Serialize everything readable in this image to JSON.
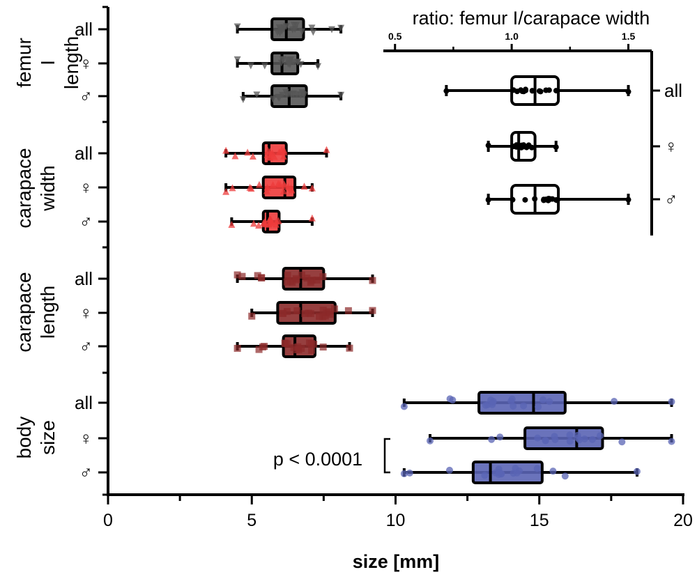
{
  "chart_data": [
    {
      "type": "box",
      "xlabel": "size [mm]",
      "xlim": [
        0,
        20
      ],
      "x_ticks": [
        0,
        5,
        10,
        15,
        20
      ],
      "groups": [
        {
          "label": "femur I length",
          "color": "#555555",
          "marker": "triangle-down",
          "rows": [
            {
              "label": "all",
              "min": 4.5,
              "q1": 5.7,
              "median": 6.2,
              "q3": 6.8,
              "max": 8.1
            },
            {
              "label": "♀",
              "min": 4.5,
              "q1": 5.7,
              "median": 6.05,
              "q3": 6.6,
              "max": 7.3
            },
            {
              "label": "♂",
              "min": 4.7,
              "q1": 5.7,
              "median": 6.3,
              "q3": 6.9,
              "max": 8.1
            }
          ]
        },
        {
          "label": "carapace width",
          "color": "#ee3b3b",
          "marker": "triangle-up",
          "rows": [
            {
              "label": "all",
              "min": 4.1,
              "q1": 5.4,
              "median": 5.6,
              "q3": 6.2,
              "max": 7.6
            },
            {
              "label": "♀",
              "min": 4.1,
              "q1": 5.4,
              "median": 6.15,
              "q3": 6.5,
              "max": 7.1
            },
            {
              "label": "♂",
              "min": 4.3,
              "q1": 5.4,
              "median": 5.55,
              "q3": 5.95,
              "max": 7.1
            }
          ]
        },
        {
          "label": "carapace length",
          "color": "#8b2a2a",
          "marker": "square",
          "rows": [
            {
              "label": "all",
              "min": 4.5,
              "q1": 6.1,
              "median": 6.7,
              "q3": 7.5,
              "max": 9.2
            },
            {
              "label": "♀",
              "min": 5.0,
              "q1": 5.9,
              "median": 6.7,
              "q3": 7.9,
              "max": 9.2
            },
            {
              "label": "♂",
              "min": 4.5,
              "q1": 6.1,
              "median": 6.5,
              "q3": 7.2,
              "max": 8.4
            }
          ]
        },
        {
          "label": "body size",
          "color": "#5a64b4",
          "marker": "circle",
          "rows": [
            {
              "label": "all",
              "min": 10.3,
              "q1": 12.9,
              "median": 14.8,
              "q3": 15.9,
              "max": 19.6
            },
            {
              "label": "♀",
              "min": 11.2,
              "q1": 14.5,
              "median": 16.3,
              "q3": 17.2,
              "max": 19.6
            },
            {
              "label": "♂",
              "min": 10.3,
              "q1": 12.7,
              "median": 13.3,
              "q3": 15.1,
              "max": 18.4
            }
          ]
        }
      ],
      "annotation": "p < 0.0001"
    },
    {
      "type": "box",
      "title": "ratio: femur I/carapace width",
      "xlim": [
        0.45,
        1.6
      ],
      "x_ticks": [
        0.5,
        1.0,
        1.5
      ],
      "x_tick_labels": [
        "0.5",
        "1.0",
        "1.5"
      ],
      "rows": [
        {
          "label": "all",
          "min": 0.72,
          "q1": 1.0,
          "median": 1.1,
          "q3": 1.2,
          "max": 1.5
        },
        {
          "label": "♀",
          "min": 0.9,
          "q1": 1.0,
          "median": 1.03,
          "q3": 1.1,
          "max": 1.19
        },
        {
          "label": "♂",
          "min": 0.9,
          "q1": 1.0,
          "median": 1.1,
          "q3": 1.2,
          "max": 1.5
        }
      ]
    }
  ]
}
